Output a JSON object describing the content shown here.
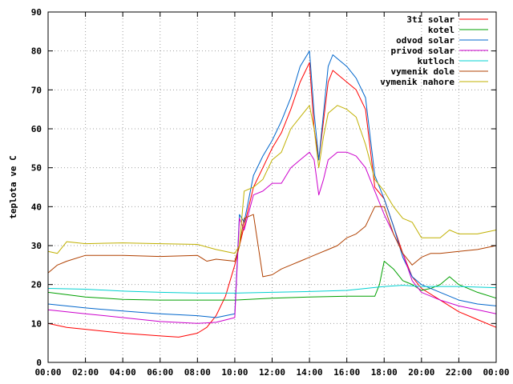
{
  "chart_data": {
    "type": "line",
    "title": "",
    "xlabel": "",
    "ylabel": "teplota ve C",
    "ylim": [
      0,
      90
    ],
    "xlim": [
      "00:00",
      "24:00"
    ],
    "grid": true,
    "legend_position": "top-right",
    "x_ticks": [
      "00:00",
      "02:00",
      "04:00",
      "06:00",
      "08:00",
      "10:00",
      "12:00",
      "14:00",
      "16:00",
      "18:00",
      "20:00",
      "22:00",
      "00:00"
    ],
    "y_ticks": [
      0,
      10,
      20,
      30,
      40,
      50,
      60,
      70,
      80,
      90
    ],
    "series": [
      {
        "name": "3ti solar",
        "color": "#ff0000",
        "points": [
          [
            "00:00",
            10
          ],
          [
            "01:00",
            9
          ],
          [
            "02:00",
            8.5
          ],
          [
            "04:00",
            7.5
          ],
          [
            "06:00",
            6.8
          ],
          [
            "07:00",
            6.5
          ],
          [
            "08:00",
            7.5
          ],
          [
            "08:30",
            9
          ],
          [
            "09:00",
            12
          ],
          [
            "09:30",
            17
          ],
          [
            "10:00",
            25
          ],
          [
            "10:30",
            35
          ],
          [
            "11:00",
            45
          ],
          [
            "11:30",
            50
          ],
          [
            "12:00",
            55
          ],
          [
            "12:30",
            59
          ],
          [
            "13:00",
            65
          ],
          [
            "13:30",
            72
          ],
          [
            "14:00",
            77
          ],
          [
            "14:15",
            60
          ],
          [
            "14:30",
            52
          ],
          [
            "14:45",
            62
          ],
          [
            "15:00",
            72
          ],
          [
            "15:15",
            75
          ],
          [
            "15:30",
            74
          ],
          [
            "16:00",
            72
          ],
          [
            "16:30",
            70
          ],
          [
            "17:00",
            65
          ],
          [
            "17:30",
            45
          ],
          [
            "18:00",
            42
          ],
          [
            "18:30",
            35
          ],
          [
            "19:00",
            28
          ],
          [
            "19:30",
            22
          ],
          [
            "20:00",
            19
          ],
          [
            "21:00",
            16
          ],
          [
            "22:00",
            13
          ],
          [
            "23:00",
            11
          ],
          [
            "24:00",
            9
          ]
        ]
      },
      {
        "name": "kotel",
        "color": "#00a000",
        "points": [
          [
            "00:00",
            18
          ],
          [
            "02:00",
            16.8
          ],
          [
            "04:00",
            16.2
          ],
          [
            "06:00",
            16
          ],
          [
            "08:00",
            16
          ],
          [
            "10:00",
            16
          ],
          [
            "12:00",
            16.5
          ],
          [
            "14:00",
            16.8
          ],
          [
            "16:00",
            17
          ],
          [
            "17:30",
            17
          ],
          [
            "17:45",
            20
          ],
          [
            "18:00",
            26
          ],
          [
            "18:30",
            24
          ],
          [
            "19:00",
            21
          ],
          [
            "19:30",
            20
          ],
          [
            "20:00",
            18.5
          ],
          [
            "20:30",
            19
          ],
          [
            "21:00",
            20
          ],
          [
            "21:30",
            22
          ],
          [
            "22:00",
            20
          ],
          [
            "23:00",
            18
          ],
          [
            "24:00",
            16.5
          ]
        ]
      },
      {
        "name": "odvod solar",
        "color": "#0066cc",
        "points": [
          [
            "00:00",
            15
          ],
          [
            "02:00",
            14
          ],
          [
            "04:00",
            13.2
          ],
          [
            "06:00",
            12.5
          ],
          [
            "08:00",
            12
          ],
          [
            "09:00",
            11.5
          ],
          [
            "10:00",
            12.5
          ],
          [
            "10:15",
            38
          ],
          [
            "10:30",
            36
          ],
          [
            "11:00",
            48
          ],
          [
            "11:30",
            53
          ],
          [
            "12:00",
            57
          ],
          [
            "12:30",
            62
          ],
          [
            "13:00",
            68
          ],
          [
            "13:30",
            76
          ],
          [
            "14:00",
            80
          ],
          [
            "14:15",
            64
          ],
          [
            "14:30",
            52
          ],
          [
            "14:45",
            64
          ],
          [
            "15:00",
            76
          ],
          [
            "15:15",
            79
          ],
          [
            "15:30",
            78
          ],
          [
            "16:00",
            76
          ],
          [
            "16:30",
            73
          ],
          [
            "17:00",
            68
          ],
          [
            "17:30",
            48
          ],
          [
            "18:00",
            42
          ],
          [
            "18:30",
            35
          ],
          [
            "19:00",
            27
          ],
          [
            "19:30",
            22
          ],
          [
            "20:00",
            20
          ],
          [
            "21:00",
            18
          ],
          [
            "22:00",
            16
          ],
          [
            "23:00",
            15
          ],
          [
            "24:00",
            14.5
          ]
        ]
      },
      {
        "name": "privod solar",
        "color": "#cc00cc",
        "points": [
          [
            "00:00",
            13.5
          ],
          [
            "02:00",
            12.5
          ],
          [
            "04:00",
            11.5
          ],
          [
            "06:00",
            10.5
          ],
          [
            "08:00",
            10
          ],
          [
            "09:00",
            10.3
          ],
          [
            "10:00",
            11.5
          ],
          [
            "10:15",
            37
          ],
          [
            "10:30",
            34
          ],
          [
            "11:00",
            43
          ],
          [
            "11:30",
            44
          ],
          [
            "12:00",
            46
          ],
          [
            "12:30",
            46
          ],
          [
            "13:00",
            50
          ],
          [
            "13:30",
            52
          ],
          [
            "14:00",
            54
          ],
          [
            "14:15",
            52
          ],
          [
            "14:30",
            43
          ],
          [
            "14:45",
            47
          ],
          [
            "15:00",
            52
          ],
          [
            "15:30",
            54
          ],
          [
            "16:00",
            54
          ],
          [
            "16:30",
            53
          ],
          [
            "17:00",
            50
          ],
          [
            "17:30",
            44
          ],
          [
            "18:00",
            38
          ],
          [
            "18:30",
            33
          ],
          [
            "19:00",
            28
          ],
          [
            "19:30",
            21
          ],
          [
            "20:00",
            18
          ],
          [
            "21:00",
            16
          ],
          [
            "22:00",
            14.5
          ],
          [
            "23:00",
            13.5
          ],
          [
            "24:00",
            12.5
          ]
        ]
      },
      {
        "name": "kutloch",
        "color": "#00d0d0",
        "points": [
          [
            "00:00",
            19
          ],
          [
            "02:00",
            18.8
          ],
          [
            "04:00",
            18.3
          ],
          [
            "06:00",
            18
          ],
          [
            "08:00",
            17.8
          ],
          [
            "10:00",
            17.8
          ],
          [
            "12:00",
            18
          ],
          [
            "14:00",
            18.2
          ],
          [
            "16:00",
            18.5
          ],
          [
            "18:00",
            19.5
          ],
          [
            "19:00",
            19.8
          ],
          [
            "20:00",
            19.5
          ],
          [
            "22:00",
            19.5
          ],
          [
            "24:00",
            19.2
          ]
        ]
      },
      {
        "name": "vymenik dole",
        "color": "#b04000",
        "points": [
          [
            "00:00",
            23
          ],
          [
            "00:30",
            25
          ],
          [
            "01:00",
            26
          ],
          [
            "02:00",
            27.5
          ],
          [
            "04:00",
            27.5
          ],
          [
            "06:00",
            27.2
          ],
          [
            "08:00",
            27.5
          ],
          [
            "08:30",
            26
          ],
          [
            "09:00",
            26.5
          ],
          [
            "10:00",
            26
          ],
          [
            "10:15",
            30
          ],
          [
            "10:30",
            37
          ],
          [
            "11:00",
            38
          ],
          [
            "11:30",
            22
          ],
          [
            "12:00",
            22.5
          ],
          [
            "12:30",
            24
          ],
          [
            "13:00",
            25
          ],
          [
            "13:30",
            26
          ],
          [
            "14:00",
            27
          ],
          [
            "14:30",
            28
          ],
          [
            "15:00",
            29
          ],
          [
            "15:30",
            30
          ],
          [
            "16:00",
            32
          ],
          [
            "16:30",
            33
          ],
          [
            "17:00",
            35
          ],
          [
            "17:30",
            40
          ],
          [
            "18:00",
            40
          ],
          [
            "18:30",
            33
          ],
          [
            "19:00",
            28
          ],
          [
            "19:30",
            25
          ],
          [
            "20:00",
            27
          ],
          [
            "20:30",
            28
          ],
          [
            "21:00",
            28
          ],
          [
            "22:00",
            28.5
          ],
          [
            "23:00",
            29
          ],
          [
            "24:00",
            30
          ]
        ]
      },
      {
        "name": "vymenik nahore",
        "color": "#c0b000",
        "points": [
          [
            "00:00",
            28.5
          ],
          [
            "00:30",
            28
          ],
          [
            "01:00",
            31
          ],
          [
            "02:00",
            30.5
          ],
          [
            "04:00",
            30.7
          ],
          [
            "06:00",
            30.5
          ],
          [
            "08:00",
            30.3
          ],
          [
            "09:00",
            29
          ],
          [
            "10:00",
            28
          ],
          [
            "10:15",
            30
          ],
          [
            "10:30",
            44
          ],
          [
            "11:00",
            45
          ],
          [
            "11:30",
            47
          ],
          [
            "12:00",
            52
          ],
          [
            "12:30",
            54
          ],
          [
            "13:00",
            60
          ],
          [
            "13:30",
            63
          ],
          [
            "14:00",
            66
          ],
          [
            "14:15",
            60
          ],
          [
            "14:30",
            50
          ],
          [
            "14:45",
            58
          ],
          [
            "15:00",
            64
          ],
          [
            "15:30",
            66
          ],
          [
            "16:00",
            65
          ],
          [
            "16:30",
            63
          ],
          [
            "17:00",
            56
          ],
          [
            "17:30",
            47
          ],
          [
            "18:00",
            44
          ],
          [
            "18:30",
            40
          ],
          [
            "19:00",
            37
          ],
          [
            "19:30",
            36
          ],
          [
            "20:00",
            32
          ],
          [
            "21:00",
            32
          ],
          [
            "21:30",
            34
          ],
          [
            "22:00",
            33
          ],
          [
            "23:00",
            33
          ],
          [
            "24:00",
            34
          ]
        ]
      }
    ]
  }
}
